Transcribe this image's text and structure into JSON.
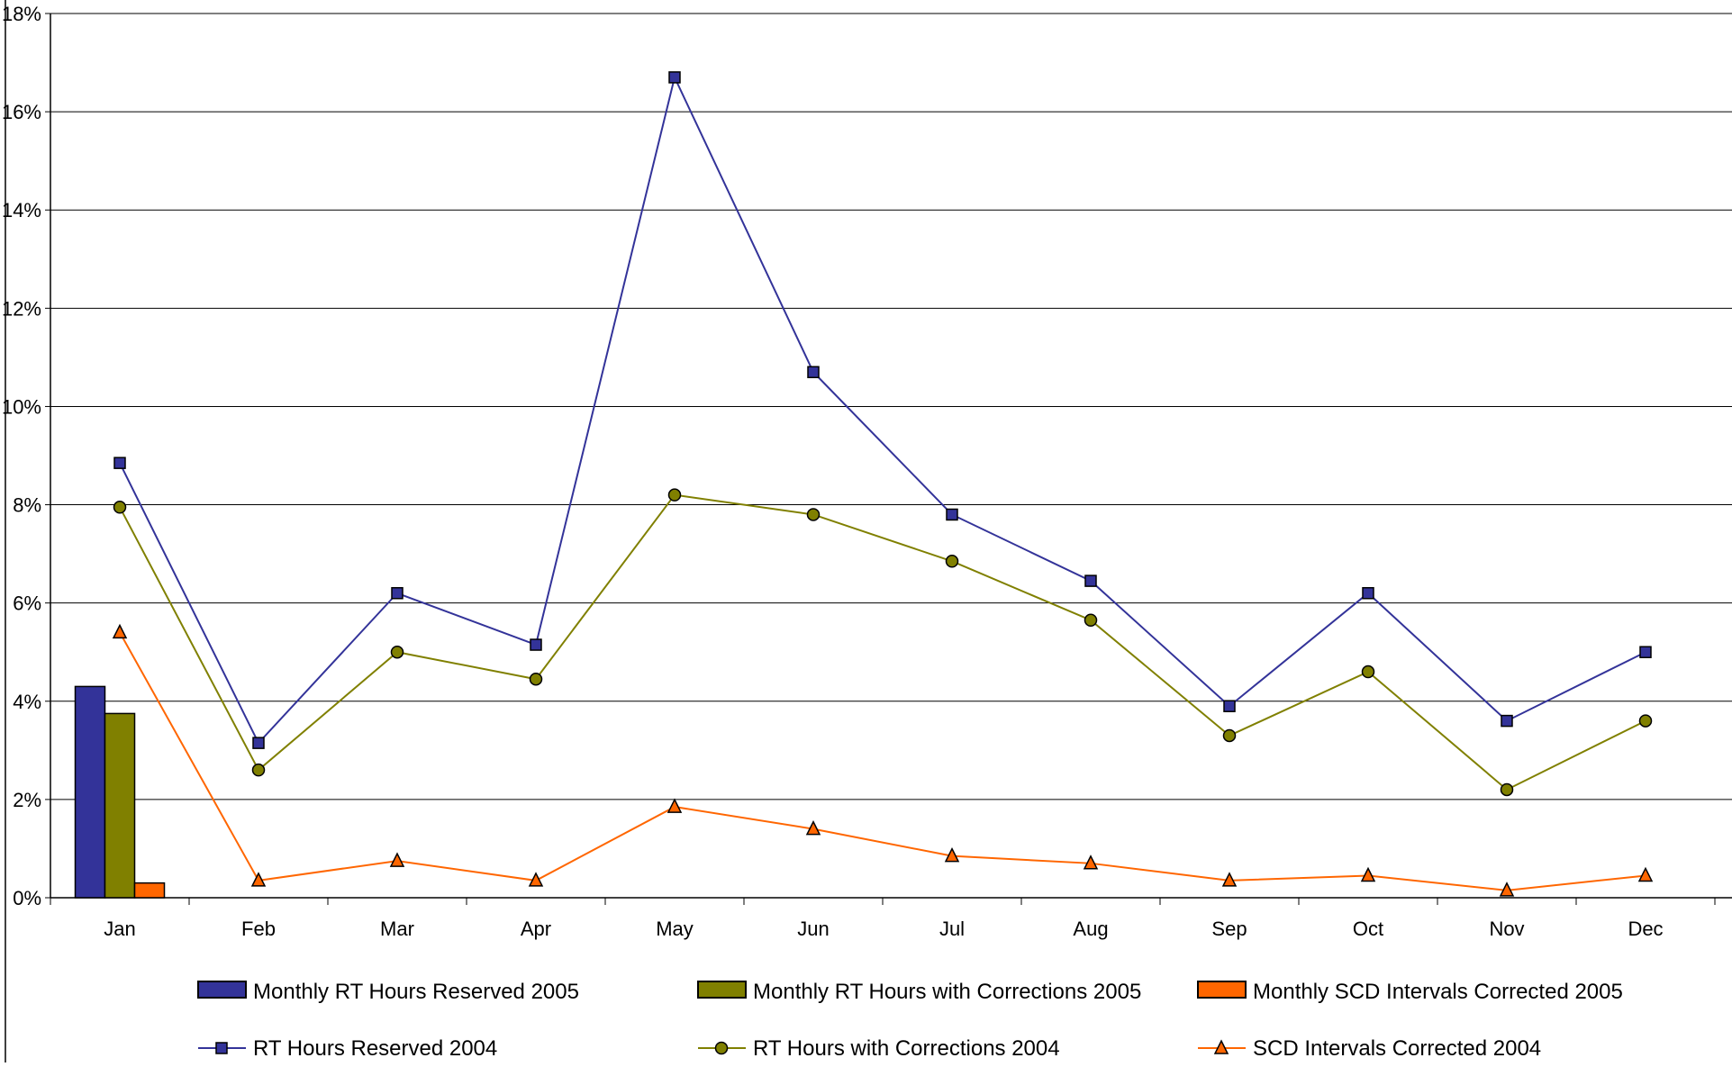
{
  "chart_data": {
    "type": "bar",
    "categories": [
      "Jan",
      "Feb",
      "Mar",
      "Apr",
      "May",
      "Jun",
      "Jul",
      "Aug",
      "Sep",
      "Oct",
      "Nov",
      "Dec"
    ],
    "y_ticks": [
      "0%",
      "2%",
      "4%",
      "6%",
      "8%",
      "10%",
      "12%",
      "14%",
      "16%",
      "18%"
    ],
    "ylim": [
      0,
      18
    ],
    "y_unit": "%",
    "grid": "horizontal",
    "legend_position": "bottom",
    "bar_series": [
      {
        "name": "Monthly RT Hours Reserved 2005",
        "color": "#333399",
        "values": [
          4.3,
          null,
          null,
          null,
          null,
          null,
          null,
          null,
          null,
          null,
          null,
          null
        ]
      },
      {
        "name": "Monthly RT Hours with Corrections 2005",
        "color": "#808000",
        "values": [
          3.75,
          null,
          null,
          null,
          null,
          null,
          null,
          null,
          null,
          null,
          null,
          null
        ]
      },
      {
        "name": "Monthly SCD Intervals Corrected 2005",
        "color": "#ff6600",
        "values": [
          0.3,
          null,
          null,
          null,
          null,
          null,
          null,
          null,
          null,
          null,
          null,
          null
        ]
      }
    ],
    "line_series": [
      {
        "name": "RT Hours Reserved 2004",
        "color": "#333399",
        "marker": "square",
        "values": [
          8.85,
          3.15,
          6.2,
          5.15,
          16.7,
          10.7,
          7.8,
          6.45,
          3.9,
          6.2,
          3.6,
          5.0
        ]
      },
      {
        "name": "RT Hours with Corrections 2004",
        "color": "#808000",
        "marker": "circle",
        "values": [
          7.95,
          2.6,
          5.0,
          4.45,
          8.2,
          7.8,
          6.85,
          5.65,
          3.3,
          4.6,
          2.2,
          3.6
        ]
      },
      {
        "name": "SCD Intervals Corrected 2004",
        "color": "#ff6600",
        "marker": "triangle",
        "values": [
          5.4,
          0.35,
          0.75,
          0.35,
          1.85,
          1.4,
          0.85,
          0.7,
          0.35,
          0.45,
          0.15,
          0.45
        ]
      }
    ]
  }
}
